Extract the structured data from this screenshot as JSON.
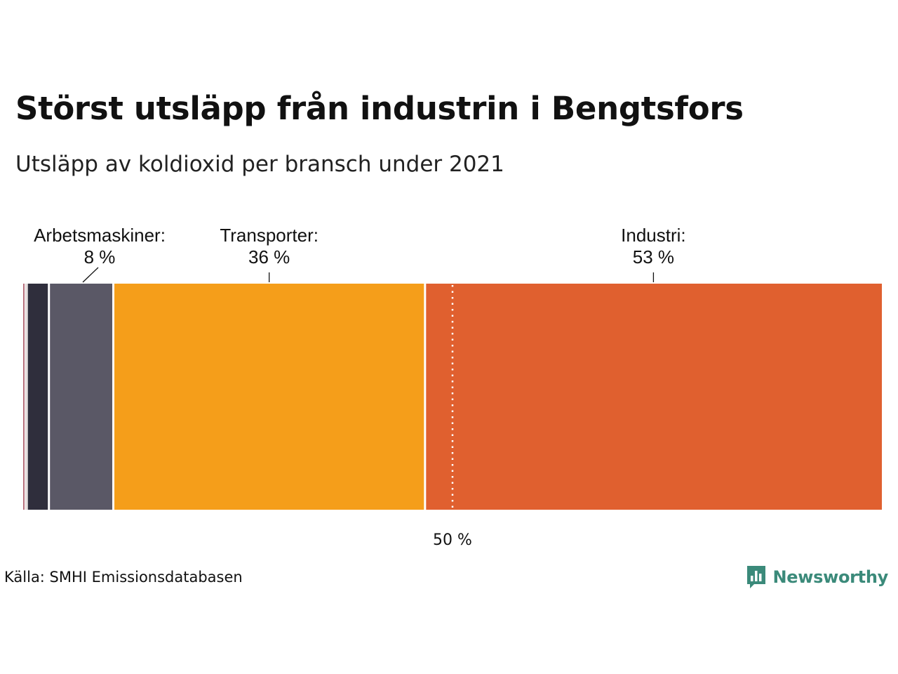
{
  "title": "Störst utsläpp från industrin i Bengtsfors",
  "subtitle": "Utsläpp av koldioxid per bransch under 2021",
  "source": "Källa: SMHI Emissionsdatabasen",
  "logo": {
    "name": "Newsworthy",
    "icon": "newsworthy-logo-icon",
    "color": "#3b8a7a"
  },
  "chart_data": {
    "type": "bar",
    "orientation": "horizontal-stacked-100",
    "xlim": [
      0,
      100
    ],
    "reference_line": {
      "value": 50,
      "label": "50 %"
    },
    "segments": [
      {
        "name": "",
        "value": 0.2,
        "color": "#b56b78",
        "label": "",
        "value_label": ""
      },
      {
        "name": "",
        "value": 0.3,
        "color": "#e4dada",
        "label": "",
        "value_label": ""
      },
      {
        "name": "",
        "value": 2.5,
        "color": "#2f2e3c",
        "label": "",
        "value_label": ""
      },
      {
        "name": "Arbetsmaskiner",
        "value": 7.5,
        "color": "#5a5866",
        "label": "Arbetsmaskiner:",
        "value_label": "8 %"
      },
      {
        "name": "Transporter",
        "value": 36.3,
        "color": "#f59e1a",
        "label": "Transporter:",
        "value_label": "36 %"
      },
      {
        "name": "Industri",
        "value": 53.2,
        "color": "#e0602f",
        "label": "Industri:",
        "value_label": "53 %"
      }
    ]
  }
}
